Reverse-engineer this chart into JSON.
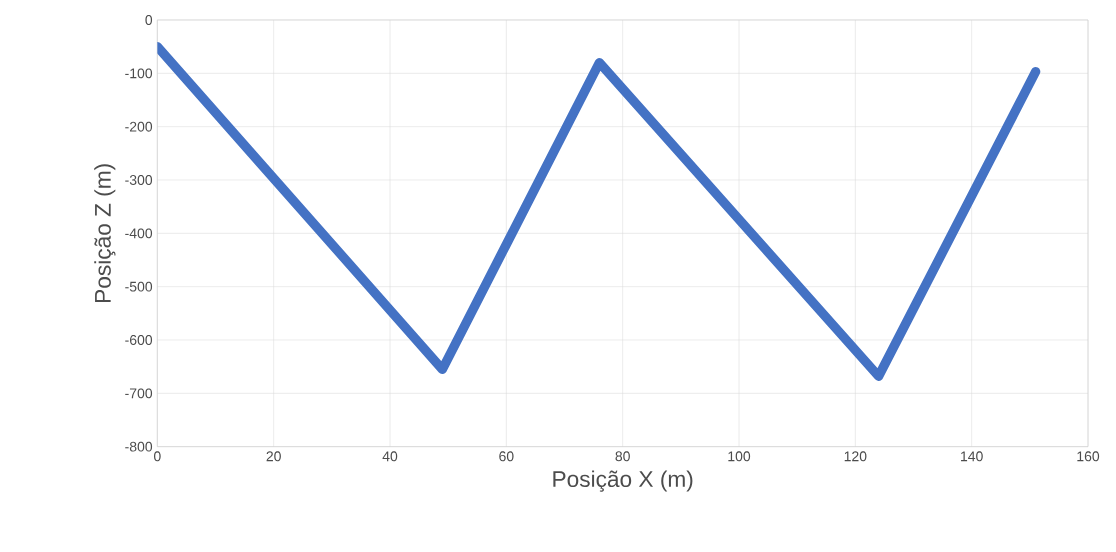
{
  "chart_data": {
    "type": "line",
    "xlabel": "Posição X (m)",
    "ylabel": "Posição Z (m)",
    "x": [
      0,
      49,
      76,
      124,
      151
    ],
    "series": [
      {
        "color": "#4472c4",
        "values": [
          -50,
          -655,
          -80,
          -668,
          -97
        ]
      }
    ],
    "xlim": [
      0,
      160
    ],
    "ylim": [
      -800,
      0
    ],
    "xticks": [
      0,
      20,
      40,
      60,
      80,
      100,
      120,
      140,
      160
    ],
    "yticks": [
      0,
      -100,
      -200,
      -300,
      -400,
      -500,
      -600,
      -700,
      -800
    ],
    "grid": true,
    "marker": "none",
    "line_style": "solid"
  }
}
